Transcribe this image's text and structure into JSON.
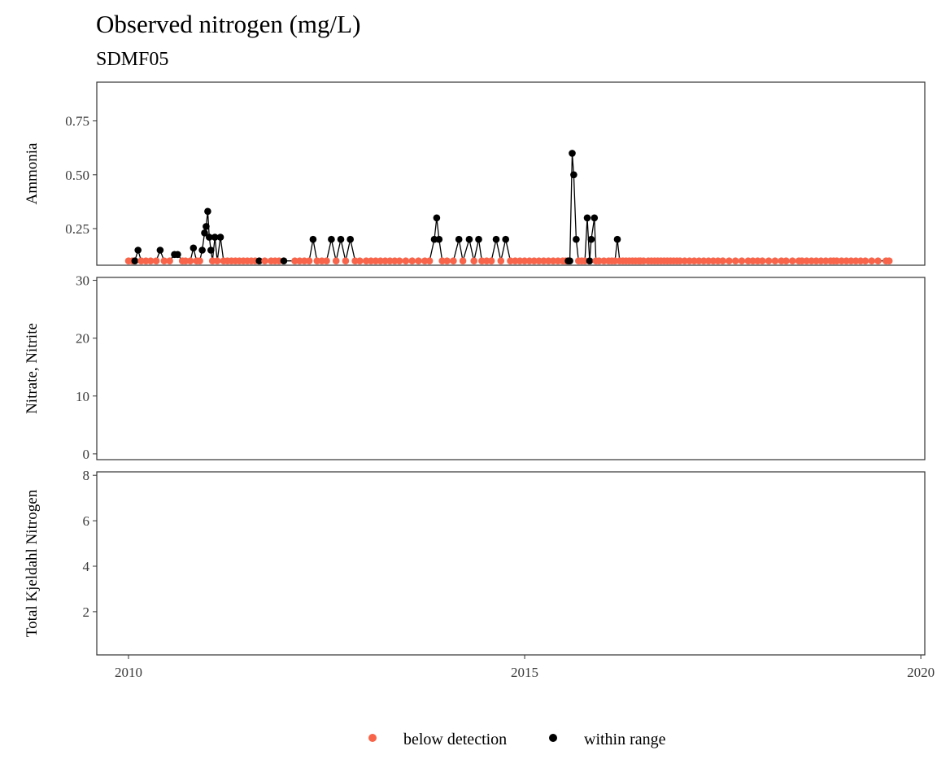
{
  "title": "Observed nitrogen (mg/L)",
  "subtitle": "SDMF05",
  "colors": {
    "below_detection": "#F8644A",
    "within_range": "#000000",
    "panel_border": "#333333"
  },
  "chart_data": {
    "type": "line",
    "shared_x": {
      "ticks": [
        2010,
        2015,
        2020
      ],
      "xlim": [
        2009.6,
        2020.05
      ]
    },
    "legend": {
      "position": "bottom",
      "entries": [
        {
          "label": "below detection",
          "color": "#F8644A"
        },
        {
          "label": "within range",
          "color": "#000000"
        }
      ]
    },
    "panels": [
      {
        "ylabel": "Ammonia",
        "ylim": [
          0.08,
          0.93
        ],
        "yticks": [
          0.25,
          0.5,
          0.75
        ],
        "ytick_labels": [
          "0.25",
          "0.50",
          "0.75"
        ],
        "points": [
          [
            2010.0,
            0.1,
            "b"
          ],
          [
            2010.05,
            0.1,
            "b"
          ],
          [
            2010.08,
            0.1,
            "w"
          ],
          [
            2010.12,
            0.15,
            "w"
          ],
          [
            2010.16,
            0.1,
            "b"
          ],
          [
            2010.22,
            0.1,
            "b"
          ],
          [
            2010.28,
            0.1,
            "b"
          ],
          [
            2010.35,
            0.1,
            "b"
          ],
          [
            2010.4,
            0.15,
            "w"
          ],
          [
            2010.45,
            0.1,
            "b"
          ],
          [
            2010.52,
            0.1,
            "b"
          ],
          [
            2010.58,
            0.13,
            "w"
          ],
          [
            2010.62,
            0.13,
            "w"
          ],
          [
            2010.68,
            0.1,
            "b"
          ],
          [
            2010.72,
            0.1,
            "b"
          ],
          [
            2010.78,
            0.1,
            "b"
          ],
          [
            2010.82,
            0.16,
            "w"
          ],
          [
            2010.86,
            0.1,
            "b"
          ],
          [
            2010.9,
            0.1,
            "b"
          ],
          [
            2010.93,
            0.15,
            "w"
          ],
          [
            2010.96,
            0.23,
            "w"
          ],
          [
            2010.98,
            0.26,
            "w"
          ],
          [
            2011.0,
            0.33,
            "w"
          ],
          [
            2011.02,
            0.21,
            "w"
          ],
          [
            2011.04,
            0.15,
            "w"
          ],
          [
            2011.06,
            0.1,
            "b"
          ],
          [
            2011.09,
            0.21,
            "w"
          ],
          [
            2011.12,
            0.1,
            "b"
          ],
          [
            2011.16,
            0.21,
            "w"
          ],
          [
            2011.2,
            0.1,
            "b"
          ],
          [
            2011.25,
            0.1,
            "b"
          ],
          [
            2011.3,
            0.1,
            "b"
          ],
          [
            2011.35,
            0.1,
            "b"
          ],
          [
            2011.4,
            0.1,
            "b"
          ],
          [
            2011.45,
            0.1,
            "b"
          ],
          [
            2011.5,
            0.1,
            "b"
          ],
          [
            2011.55,
            0.1,
            "b"
          ],
          [
            2011.6,
            0.1,
            "b"
          ],
          [
            2011.65,
            0.1,
            "w"
          ],
          [
            2011.72,
            0.1,
            "b"
          ],
          [
            2011.8,
            0.1,
            "b"
          ],
          [
            2011.85,
            0.1,
            "b"
          ],
          [
            2011.9,
            0.1,
            "b"
          ],
          [
            2011.96,
            0.1,
            "w"
          ],
          [
            2012.1,
            0.1,
            "b"
          ],
          [
            2012.16,
            0.1,
            "b"
          ],
          [
            2012.22,
            0.1,
            "b"
          ],
          [
            2012.28,
            0.1,
            "b"
          ],
          [
            2012.33,
            0.2,
            "w"
          ],
          [
            2012.38,
            0.1,
            "b"
          ],
          [
            2012.44,
            0.1,
            "b"
          ],
          [
            2012.5,
            0.1,
            "b"
          ],
          [
            2012.56,
            0.2,
            "w"
          ],
          [
            2012.62,
            0.1,
            "b"
          ],
          [
            2012.68,
            0.2,
            "w"
          ],
          [
            2012.74,
            0.1,
            "b"
          ],
          [
            2012.8,
            0.2,
            "w"
          ],
          [
            2012.86,
            0.1,
            "b"
          ],
          [
            2012.92,
            0.1,
            "b"
          ],
          [
            2013.0,
            0.1,
            "b"
          ],
          [
            2013.06,
            0.1,
            "b"
          ],
          [
            2013.12,
            0.1,
            "b"
          ],
          [
            2013.18,
            0.1,
            "b"
          ],
          [
            2013.24,
            0.1,
            "b"
          ],
          [
            2013.3,
            0.1,
            "b"
          ],
          [
            2013.36,
            0.1,
            "b"
          ],
          [
            2013.42,
            0.1,
            "b"
          ],
          [
            2013.5,
            0.1,
            "b"
          ],
          [
            2013.58,
            0.1,
            "b"
          ],
          [
            2013.66,
            0.1,
            "b"
          ],
          [
            2013.74,
            0.1,
            "b"
          ],
          [
            2013.8,
            0.1,
            "b"
          ],
          [
            2013.86,
            0.2,
            "w"
          ],
          [
            2013.89,
            0.3,
            "w"
          ],
          [
            2013.92,
            0.2,
            "w"
          ],
          [
            2013.96,
            0.1,
            "b"
          ],
          [
            2014.02,
            0.1,
            "b"
          ],
          [
            2014.1,
            0.1,
            "b"
          ],
          [
            2014.17,
            0.2,
            "w"
          ],
          [
            2014.22,
            0.1,
            "b"
          ],
          [
            2014.3,
            0.2,
            "w"
          ],
          [
            2014.36,
            0.1,
            "b"
          ],
          [
            2014.42,
            0.2,
            "w"
          ],
          [
            2014.46,
            0.1,
            "b"
          ],
          [
            2014.52,
            0.1,
            "b"
          ],
          [
            2014.58,
            0.1,
            "b"
          ],
          [
            2014.64,
            0.2,
            "w"
          ],
          [
            2014.7,
            0.1,
            "b"
          ],
          [
            2014.76,
            0.2,
            "w"
          ],
          [
            2014.82,
            0.1,
            "b"
          ],
          [
            2014.88,
            0.1,
            "b"
          ],
          [
            2014.94,
            0.1,
            "b"
          ],
          [
            2015.0,
            0.1,
            "b"
          ],
          [
            2015.06,
            0.1,
            "b"
          ],
          [
            2015.12,
            0.1,
            "b"
          ],
          [
            2015.18,
            0.1,
            "b"
          ],
          [
            2015.24,
            0.1,
            "b"
          ],
          [
            2015.3,
            0.1,
            "b"
          ],
          [
            2015.36,
            0.1,
            "b"
          ],
          [
            2015.42,
            0.1,
            "b"
          ],
          [
            2015.48,
            0.1,
            "b"
          ],
          [
            2015.52,
            0.1,
            "b"
          ],
          [
            2015.55,
            0.1,
            "w"
          ],
          [
            2015.57,
            0.1,
            "w"
          ],
          [
            2015.6,
            0.6,
            "w"
          ],
          [
            2015.62,
            0.5,
            "w"
          ],
          [
            2015.65,
            0.2,
            "w"
          ],
          [
            2015.68,
            0.1,
            "b"
          ],
          [
            2015.72,
            0.1,
            "b"
          ],
          [
            2015.76,
            0.1,
            "b"
          ],
          [
            2015.79,
            0.3,
            "w"
          ],
          [
            2015.82,
            0.1,
            "w"
          ],
          [
            2015.84,
            0.2,
            "w"
          ],
          [
            2015.88,
            0.3,
            "w"
          ],
          [
            2015.9,
            0.1,
            "b"
          ],
          [
            2015.94,
            0.1,
            "b"
          ],
          [
            2016.0,
            0.1,
            "b"
          ],
          [
            2016.06,
            0.1,
            "b"
          ],
          [
            2016.1,
            0.1,
            "b"
          ],
          [
            2016.14,
            0.1,
            "b"
          ],
          [
            2016.17,
            0.2,
            "w"
          ],
          [
            2016.2,
            0.1,
            "b"
          ],
          [
            2016.24,
            0.1,
            "b"
          ],
          [
            2016.28,
            0.1,
            "b"
          ],
          [
            2016.32,
            0.1,
            "b"
          ],
          [
            2016.36,
            0.1,
            "b"
          ],
          [
            2016.4,
            0.1,
            "b"
          ],
          [
            2016.44,
            0.1,
            "b"
          ],
          [
            2016.46,
            0.1,
            "b"
          ],
          [
            2016.5,
            0.1,
            "b"
          ],
          [
            2016.56,
            0.1,
            "b"
          ],
          [
            2016.6,
            0.1,
            "b"
          ],
          [
            2016.64,
            0.1,
            "b"
          ],
          [
            2016.68,
            0.1,
            "b"
          ],
          [
            2016.72,
            0.1,
            "b"
          ],
          [
            2016.76,
            0.1,
            "b"
          ],
          [
            2016.8,
            0.1,
            "b"
          ],
          [
            2016.84,
            0.1,
            "b"
          ],
          [
            2016.88,
            0.1,
            "b"
          ],
          [
            2016.92,
            0.1,
            "b"
          ],
          [
            2016.96,
            0.1,
            "b"
          ],
          [
            2017.02,
            0.1,
            "b"
          ],
          [
            2017.08,
            0.1,
            "b"
          ],
          [
            2017.14,
            0.1,
            "b"
          ],
          [
            2017.2,
            0.1,
            "b"
          ],
          [
            2017.26,
            0.1,
            "b"
          ],
          [
            2017.32,
            0.1,
            "b"
          ],
          [
            2017.38,
            0.1,
            "b"
          ],
          [
            2017.44,
            0.1,
            "b"
          ],
          [
            2017.5,
            0.1,
            "b"
          ],
          [
            2017.58,
            0.1,
            "b"
          ],
          [
            2017.66,
            0.1,
            "b"
          ],
          [
            2017.74,
            0.1,
            "b"
          ],
          [
            2017.82,
            0.1,
            "b"
          ],
          [
            2017.88,
            0.1,
            "b"
          ],
          [
            2017.94,
            0.1,
            "b"
          ],
          [
            2018.0,
            0.1,
            "b"
          ],
          [
            2018.08,
            0.1,
            "b"
          ],
          [
            2018.16,
            0.1,
            "b"
          ],
          [
            2018.24,
            0.1,
            "b"
          ],
          [
            2018.3,
            0.1,
            "b"
          ],
          [
            2018.38,
            0.1,
            "b"
          ],
          [
            2018.46,
            0.1,
            "b"
          ],
          [
            2018.5,
            0.1,
            "b"
          ],
          [
            2018.56,
            0.1,
            "b"
          ],
          [
            2018.62,
            0.1,
            "b"
          ],
          [
            2018.68,
            0.1,
            "b"
          ],
          [
            2018.74,
            0.1,
            "b"
          ],
          [
            2018.8,
            0.1,
            "b"
          ],
          [
            2018.86,
            0.1,
            "b"
          ],
          [
            2018.9,
            0.1,
            "b"
          ],
          [
            2018.94,
            0.1,
            "b"
          ],
          [
            2019.0,
            0.1,
            "b"
          ],
          [
            2019.06,
            0.1,
            "b"
          ],
          [
            2019.12,
            0.1,
            "b"
          ],
          [
            2019.18,
            0.1,
            "b"
          ],
          [
            2019.24,
            0.1,
            "b"
          ],
          [
            2019.3,
            0.1,
            "b"
          ],
          [
            2019.38,
            0.1,
            "b"
          ],
          [
            2019.46,
            0.1,
            "b"
          ],
          [
            2019.56,
            0.1,
            "b"
          ],
          [
            2019.6,
            0.1,
            "b"
          ]
        ]
      },
      {
        "ylabel": "Nitrate, Nitrite",
        "ylim": [
          -1,
          30.5
        ],
        "yticks": [
          0,
          10,
          20,
          30
        ],
        "ytick_labels": [
          "0",
          "10",
          "20",
          "30"
        ],
        "points": []
      },
      {
        "ylabel": "Total Kjeldahl Nitrogen",
        "ylim": [
          0.1,
          8.15
        ],
        "yticks": [
          2,
          4,
          6,
          8
        ],
        "ytick_labels": [
          "2",
          "4",
          "6",
          "8"
        ],
        "points": []
      }
    ]
  }
}
